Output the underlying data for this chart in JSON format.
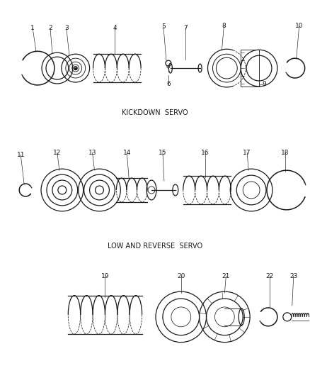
{
  "background_color": "#ffffff",
  "line_color": "#1a1a1a",
  "section1_label": "KICKDOWN  SERVO",
  "section2_label": "LOW AND REVERSE  SERVO",
  "fig_width": 4.38,
  "fig_height": 5.33,
  "dpi": 100,
  "title_font_size": 7.0,
  "label_font_size": 6.5
}
